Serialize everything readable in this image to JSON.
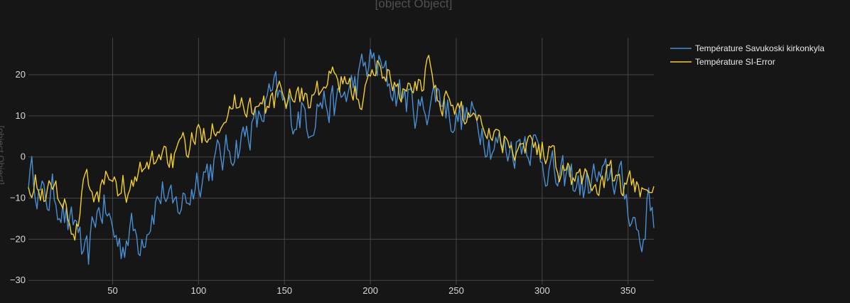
{
  "chart_data": {
    "type": "line",
    "title": "[object Object]",
    "ylabel": "[object Object]",
    "xlim": [
      1,
      365
    ],
    "ylim": [
      -31,
      29
    ],
    "xticks": [
      50,
      100,
      150,
      200,
      250,
      300,
      350
    ],
    "yticks": [
      -30,
      -20,
      -10,
      0,
      10,
      20
    ],
    "grid": true,
    "legend_position": "top-right",
    "series": [
      {
        "name": "Température Savukoski kirkonkyla",
        "color": "#4a8fd4",
        "anchors": [
          [
            1,
            -4
          ],
          [
            5,
            -5
          ],
          [
            10,
            -11
          ],
          [
            15,
            -9
          ],
          [
            20,
            -11
          ],
          [
            25,
            -18
          ],
          [
            30,
            -16
          ],
          [
            33,
            -27
          ],
          [
            36,
            -25
          ],
          [
            40,
            -14
          ],
          [
            45,
            -12
          ],
          [
            50,
            -18
          ],
          [
            55,
            -22
          ],
          [
            60,
            -17
          ],
          [
            65,
            -20
          ],
          [
            70,
            -16
          ],
          [
            75,
            -11
          ],
          [
            80,
            -8
          ],
          [
            85,
            -14
          ],
          [
            90,
            -11
          ],
          [
            95,
            -9
          ],
          [
            100,
            -4
          ],
          [
            105,
            -3
          ],
          [
            110,
            -1
          ],
          [
            115,
            0
          ],
          [
            120,
            3
          ],
          [
            125,
            4
          ],
          [
            130,
            7
          ],
          [
            135,
            8
          ],
          [
            140,
            13
          ],
          [
            145,
            15
          ],
          [
            150,
            12
          ],
          [
            155,
            10
          ],
          [
            160,
            11
          ],
          [
            165,
            9
          ],
          [
            170,
            14
          ],
          [
            175,
            13
          ],
          [
            180,
            12
          ],
          [
            185,
            15
          ],
          [
            190,
            17
          ],
          [
            195,
            20
          ],
          [
            200,
            23
          ],
          [
            205,
            22
          ],
          [
            210,
            18
          ],
          [
            215,
            16
          ],
          [
            220,
            15
          ],
          [
            225,
            12
          ],
          [
            230,
            11
          ],
          [
            235,
            14
          ],
          [
            240,
            16
          ],
          [
            245,
            12
          ],
          [
            250,
            9
          ],
          [
            255,
            10
          ],
          [
            260,
            9
          ],
          [
            265,
            8
          ],
          [
            270,
            4
          ],
          [
            275,
            3
          ],
          [
            280,
            2
          ],
          [
            285,
            3
          ],
          [
            290,
            5
          ],
          [
            295,
            3
          ],
          [
            300,
            0
          ],
          [
            305,
            -3
          ],
          [
            310,
            -7
          ],
          [
            315,
            -5
          ],
          [
            320,
            -6
          ],
          [
            325,
            -8
          ],
          [
            330,
            -5
          ],
          [
            335,
            -7
          ],
          [
            340,
            -4
          ],
          [
            345,
            -6
          ],
          [
            350,
            -11
          ],
          [
            355,
            -17
          ],
          [
            358,
            -22
          ],
          [
            362,
            -9
          ],
          [
            365,
            -13
          ]
        ]
      },
      {
        "name": "Température SI-Error",
        "color": "#f2cf2e",
        "anchors": [
          [
            1,
            -5
          ],
          [
            5,
            -6
          ],
          [
            10,
            -8
          ],
          [
            15,
            -9
          ],
          [
            20,
            -8
          ],
          [
            25,
            -15
          ],
          [
            28,
            -22
          ],
          [
            32,
            -8
          ],
          [
            36,
            -6
          ],
          [
            40,
            -12
          ],
          [
            44,
            -6
          ],
          [
            48,
            -3
          ],
          [
            52,
            -9
          ],
          [
            56,
            -6
          ],
          [
            60,
            -9
          ],
          [
            65,
            -5
          ],
          [
            70,
            -3
          ],
          [
            75,
            0
          ],
          [
            80,
            2
          ],
          [
            85,
            -1
          ],
          [
            90,
            1
          ],
          [
            95,
            3
          ],
          [
            100,
            5
          ],
          [
            105,
            7
          ],
          [
            110,
            9
          ],
          [
            115,
            11
          ],
          [
            120,
            12
          ],
          [
            125,
            14
          ],
          [
            130,
            13
          ],
          [
            135,
            11
          ],
          [
            140,
            12
          ],
          [
            145,
            14
          ],
          [
            150,
            15
          ],
          [
            155,
            16
          ],
          [
            160,
            15
          ],
          [
            165,
            14
          ],
          [
            170,
            16
          ],
          [
            175,
            18
          ],
          [
            180,
            19
          ],
          [
            185,
            17
          ],
          [
            190,
            16
          ],
          [
            195,
            15
          ],
          [
            200,
            17
          ],
          [
            205,
            23
          ],
          [
            210,
            20
          ],
          [
            215,
            17
          ],
          [
            220,
            16
          ],
          [
            225,
            15
          ],
          [
            230,
            18
          ],
          [
            234,
            24
          ],
          [
            238,
            17
          ],
          [
            242,
            14
          ],
          [
            246,
            13
          ],
          [
            250,
            11
          ],
          [
            255,
            10
          ],
          [
            260,
            11
          ],
          [
            265,
            9
          ],
          [
            270,
            7
          ],
          [
            275,
            5
          ],
          [
            280,
            4
          ],
          [
            285,
            3
          ],
          [
            290,
            4
          ],
          [
            295,
            3
          ],
          [
            300,
            2
          ],
          [
            305,
            1
          ],
          [
            310,
            -2
          ],
          [
            315,
            -4
          ],
          [
            320,
            -6
          ],
          [
            325,
            -5
          ],
          [
            330,
            -7
          ],
          [
            335,
            -6
          ],
          [
            340,
            -5
          ],
          [
            345,
            -8
          ],
          [
            350,
            -7
          ],
          [
            355,
            -8
          ],
          [
            360,
            -6
          ],
          [
            365,
            -5
          ]
        ]
      }
    ]
  }
}
